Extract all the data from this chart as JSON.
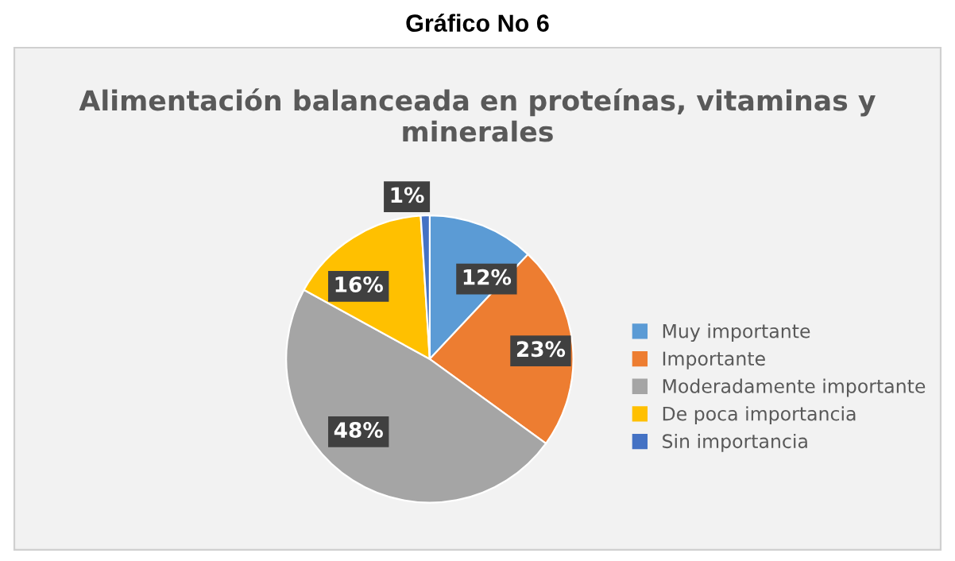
{
  "chart_data": {
    "type": "pie",
    "title": "Gráfico No 6",
    "subtitle": "Alimentación balanceada en proteínas, vitaminas y minerales",
    "categories": [
      "Muy importante",
      "Importante",
      "Moderadamente importante",
      "De poca importancia",
      "Sin importancia"
    ],
    "values": [
      12,
      23,
      48,
      16,
      1
    ],
    "colors": [
      "#5b9bd5",
      "#ed7d31",
      "#a5a5a5",
      "#ffc000",
      "#4472c4"
    ],
    "value_labels": [
      "12%",
      "23%",
      "48%",
      "16%",
      "1%"
    ],
    "legend": "right"
  }
}
